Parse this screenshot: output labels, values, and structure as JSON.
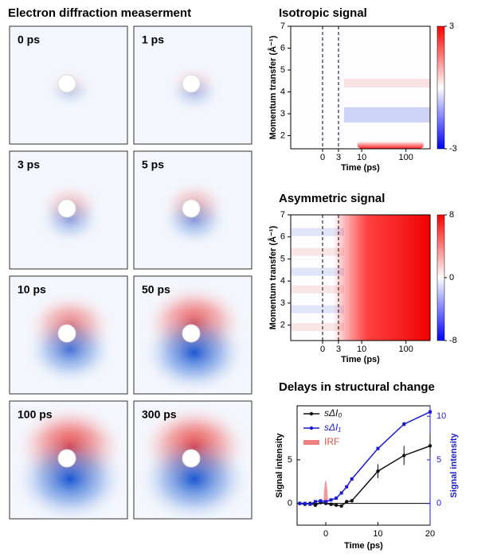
{
  "chart_data": [
    {
      "type": "image-grid",
      "title": "Electron diffraction measerment",
      "panels": [
        "0 ps",
        "1 ps",
        "3 ps",
        "5 ps",
        "10 ps",
        "50 ps",
        "100 ps",
        "300 ps"
      ]
    },
    {
      "type": "heatmap",
      "title": "Isotropic signal",
      "xlabel": "Time (ps)",
      "ylabel": "Momentum transfer (Å⁻¹)",
      "xscale": "linear-log",
      "xlim": [
        -6,
        350
      ],
      "xticks": [
        0,
        3,
        10,
        100
      ],
      "markers": [
        0,
        3
      ],
      "ylim": [
        1.4,
        7
      ],
      "yticks": [
        2,
        3,
        4,
        5,
        6,
        7
      ],
      "clim": [
        -3,
        3
      ],
      "cticks": [
        -3,
        3
      ],
      "colormap": [
        "#0000ff",
        "#ffffff",
        "#ff0000"
      ]
    },
    {
      "type": "heatmap",
      "title": "Asymmetric signal",
      "xlabel": "Time (ps)",
      "ylabel": "Momentum transfer (Å⁻¹)",
      "xscale": "linear-log",
      "xlim": [
        -6,
        350
      ],
      "xticks": [
        0,
        3,
        10,
        100
      ],
      "markers": [
        0,
        3
      ],
      "ylim": [
        1.3,
        7
      ],
      "yticks": [
        2,
        3,
        4,
        5,
        6,
        7
      ],
      "clim": [
        -8,
        8
      ],
      "cticks": [
        -8,
        0,
        8
      ],
      "colormap": [
        "#0000ff",
        "#ffffff",
        "#ff0000"
      ]
    },
    {
      "type": "line",
      "title": "Delays in structural change",
      "xlabel": "Time (ps)",
      "ylabel": "Signal intensity",
      "y2label": "Signal intensity",
      "xlim": [
        -5.5,
        20
      ],
      "xticks": [
        0,
        10,
        20
      ],
      "ylim": [
        -2.5,
        11.2
      ],
      "yticks": [
        0,
        5
      ],
      "y2lim": [
        -2.5,
        11.2
      ],
      "y2ticks": [
        0,
        5,
        10
      ],
      "series": [
        {
          "name": "sΔI₀",
          "color": "#111111",
          "x": [
            -5,
            -4,
            -3,
            -2,
            -1,
            0,
            1,
            2,
            3,
            4,
            5,
            10,
            15,
            20
          ],
          "values": [
            0,
            -0.1,
            0,
            -0.2,
            0.1,
            0,
            -0.1,
            -0.2,
            -0.3,
            0.2,
            0.3,
            3.7,
            5.5,
            6.6
          ],
          "errors": [
            0.2,
            0.2,
            0.2,
            0.2,
            0.2,
            0.2,
            0.2,
            0.2,
            0.2,
            0.2,
            0.2,
            0.8,
            1.1,
            1.4
          ]
        },
        {
          "name": "sΔI₁",
          "color": "#1a1ad6",
          "axis": "y2",
          "x": [
            -5,
            -4,
            -3,
            -2,
            -1,
            0,
            1,
            2,
            3,
            4,
            5,
            10,
            15,
            20
          ],
          "values": [
            0,
            0,
            -0.1,
            0.2,
            0.3,
            0.2,
            0.4,
            0.6,
            1.2,
            1.9,
            2.8,
            6.3,
            9.1,
            10.5
          ],
          "errors": [
            0.1,
            0.1,
            0.1,
            0.1,
            0.1,
            0.1,
            0.1,
            0.1,
            0.1,
            0.1,
            0.1,
            0.2,
            0.25,
            0.3
          ]
        }
      ],
      "irf": {
        "name": "IRF",
        "color": "#f08080",
        "center": 0,
        "height": 3.5
      }
    }
  ]
}
